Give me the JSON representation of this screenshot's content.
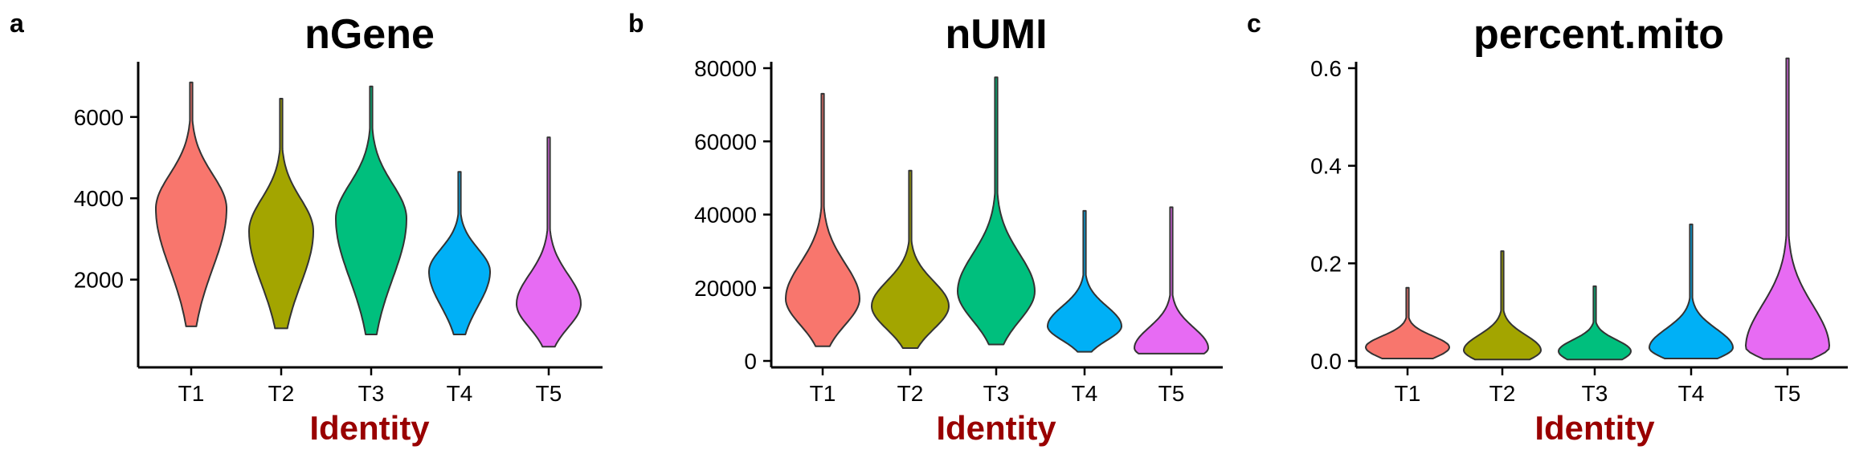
{
  "panels": [
    {
      "letter": "a",
      "title": "nGene",
      "xlabel": "Identity",
      "chart_data": {
        "type": "violin",
        "title": "nGene",
        "xlabel": "Identity",
        "ylabel": "",
        "categories": [
          "T1",
          "T2",
          "T3",
          "T4",
          "T5"
        ],
        "ylim": [
          0,
          7200
        ],
        "yticks": [
          2000,
          4000,
          6000
        ],
        "series": [
          {
            "category": "T1",
            "color": "#F8766D",
            "min": 850,
            "max": 6850,
            "median": 3750
          },
          {
            "category": "T2",
            "color": "#A3A500",
            "min": 800,
            "max": 6450,
            "median": 3200
          },
          {
            "category": "T3",
            "color": "#00BF7D",
            "min": 650,
            "max": 6750,
            "median": 3500
          },
          {
            "category": "T4",
            "color": "#00B0F6",
            "min": 650,
            "max": 4650,
            "median": 2200
          },
          {
            "category": "T5",
            "color": "#E76BF3",
            "min": 350,
            "max": 5500,
            "median": 1400
          }
        ]
      }
    },
    {
      "letter": "b",
      "title": "nUMI",
      "xlabel": "Identity",
      "chart_data": {
        "type": "violin",
        "title": "nUMI",
        "xlabel": "Identity",
        "ylabel": "",
        "categories": [
          "T1",
          "T2",
          "T3",
          "T4",
          "T5"
        ],
        "ylim": [
          0,
          80000
        ],
        "yticks": [
          0,
          20000,
          40000,
          60000,
          80000
        ],
        "series": [
          {
            "category": "T1",
            "color": "#F8766D",
            "min": 4000,
            "max": 73000,
            "median": 17000
          },
          {
            "category": "T2",
            "color": "#A3A500",
            "min": 3500,
            "max": 52000,
            "median": 15000
          },
          {
            "category": "T3",
            "color": "#00BF7D",
            "min": 4500,
            "max": 77500,
            "median": 19000
          },
          {
            "category": "T4",
            "color": "#00B0F6",
            "min": 2500,
            "max": 41000,
            "median": 9500
          },
          {
            "category": "T5",
            "color": "#E76BF3",
            "min": 2000,
            "max": 42000,
            "median": 3500
          }
        ]
      }
    },
    {
      "letter": "c",
      "title": "percent.mito",
      "xlabel": "Identity",
      "chart_data": {
        "type": "violin",
        "title": "percent.mito",
        "xlabel": "Identity",
        "ylabel": "",
        "categories": [
          "T1",
          "T2",
          "T3",
          "T4",
          "T5"
        ],
        "ylim": [
          0,
          0.6
        ],
        "yticks": [
          0.0,
          0.2,
          0.4,
          0.6
        ],
        "tick_format": "0.0",
        "series": [
          {
            "category": "T1",
            "color": "#F8766D",
            "min": 0.005,
            "max": 0.15,
            "median": 0.028
          },
          {
            "category": "T2",
            "color": "#A3A500",
            "min": 0.003,
            "max": 0.225,
            "median": 0.022
          },
          {
            "category": "T3",
            "color": "#00BF7D",
            "min": 0.003,
            "max": 0.153,
            "median": 0.02
          },
          {
            "category": "T4",
            "color": "#00B0F6",
            "min": 0.005,
            "max": 0.28,
            "median": 0.027
          },
          {
            "category": "T5",
            "color": "#E76BF3",
            "min": 0.004,
            "max": 0.62,
            "median": 0.028
          }
        ]
      }
    }
  ]
}
